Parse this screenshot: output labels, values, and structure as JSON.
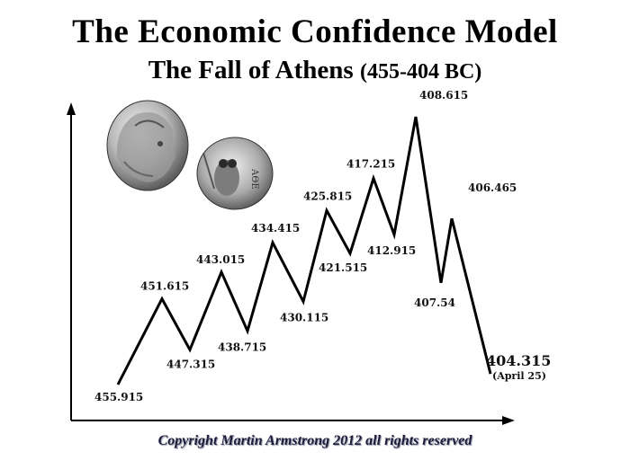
{
  "title": "The Economic Confidence Model",
  "subtitle": "The Fall of Athens",
  "subtitle_range": "(455-404 BC)",
  "copyright": "Copyright Martin Armstrong 2012 all rights reserved",
  "colors": {
    "line": "#000000",
    "axis": "#000000",
    "footer": "#1c1c3a"
  },
  "images": [
    "athena-coin-icon",
    "owl-coin-icon"
  ],
  "chart_data": {
    "type": "line",
    "title": "The Economic Confidence Model",
    "subtitle": "The Fall of Athens (455-404 BC)",
    "xlabel": "",
    "ylabel": "",
    "grid": false,
    "legend": "none",
    "series": [
      {
        "values": [
          {
            "label": "455.915",
            "x": 455.915,
            "level": 1.0
          },
          {
            "label": "451.615",
            "x": 451.615,
            "level": 4.2
          },
          {
            "label": "447.315",
            "x": 447.315,
            "level": 2.3
          },
          {
            "label": "443.015",
            "x": 443.015,
            "level": 5.2
          },
          {
            "label": "438.715",
            "x": 438.715,
            "level": 3.0
          },
          {
            "label": "434.415",
            "x": 434.415,
            "level": 6.3
          },
          {
            "label": "430.115",
            "x": 430.115,
            "level": 4.1
          },
          {
            "label": "425.815",
            "x": 425.815,
            "level": 7.5
          },
          {
            "label": "421.515",
            "x": 421.515,
            "level": 5.9
          },
          {
            "label": "417.215",
            "x": 417.215,
            "level": 8.7
          },
          {
            "label": "412.915",
            "x": 412.915,
            "level": 6.6
          },
          {
            "label": "408.615",
            "x": 408.615,
            "level": 11.0
          },
          {
            "label": "407.54",
            "x": 407.54,
            "level": 4.8
          },
          {
            "label": "406.465",
            "x": 406.465,
            "level": 7.2
          },
          {
            "label": "404.315",
            "x": 404.315,
            "level": 1.4,
            "note": "(April 25)"
          }
        ]
      }
    ]
  }
}
